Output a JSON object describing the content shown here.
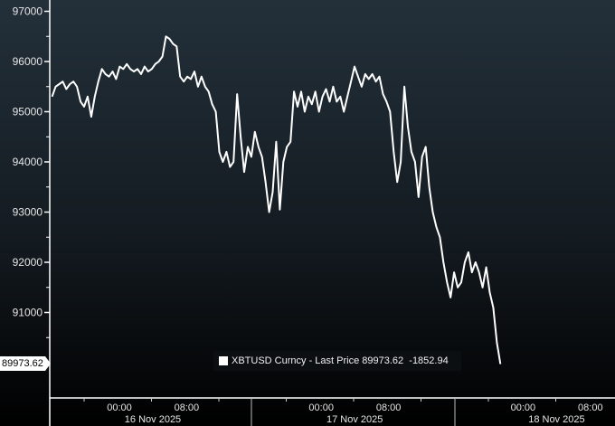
{
  "chart_data": {
    "type": "line",
    "title": "",
    "xlabel": "",
    "ylabel": "",
    "ylim": [
      89500,
      97200
    ],
    "xlim": [
      "2025-11-15 15:43",
      "2025-11-18 10:55"
    ],
    "yticks": [
      97000,
      96000,
      95000,
      94000,
      93000,
      92000,
      91000
    ],
    "xtick_labels": [
      {
        "time": "00:00",
        "date": "16 Nov 2025",
        "at": "2025-11-16 00:00"
      },
      {
        "time": "08:00",
        "date": "",
        "at": "2025-11-16 08:00"
      },
      {
        "time": "00:00",
        "date": "17 Nov 2025",
        "at": "2025-11-17 00:00"
      },
      {
        "time": "08:00",
        "date": "",
        "at": "2025-11-17 08:00"
      },
      {
        "time": "00:00",
        "date": "18 Nov 2025",
        "at": "2025-11-18 00:00"
      },
      {
        "time": "08:00",
        "date": "",
        "at": "2025-11-18 08:00"
      }
    ],
    "grid": false,
    "legend_placement": "bottom-center",
    "series": [
      {
        "name": "XBTUSD Curncy - Last Price",
        "color": "#ffffff",
        "x_start": "2025-11-15 16:00",
        "x_end": "2025-11-17 21:18",
        "values": [
          95300,
          95500,
          95550,
          95600,
          95450,
          95550,
          95600,
          95500,
          95200,
          95100,
          95300,
          94900,
          95300,
          95600,
          95850,
          95750,
          95700,
          95800,
          95650,
          95900,
          95850,
          95950,
          95850,
          95800,
          95850,
          95750,
          95900,
          95800,
          95850,
          95950,
          96000,
          96100,
          96500,
          96450,
          96350,
          96300,
          95700,
          95600,
          95700,
          95650,
          95800,
          95500,
          95700,
          95500,
          95400,
          95150,
          95000,
          94200,
          94000,
          94200,
          93900,
          94000,
          95350,
          94500,
          93800,
          94300,
          94100,
          94600,
          94300,
          94100,
          93600,
          93000,
          93400,
          94400,
          93050,
          94000,
          94300,
          94400,
          95400,
          95100,
          95400,
          95000,
          95300,
          95150,
          95400,
          95000,
          95300,
          95450,
          95200,
          95500,
          95200,
          95300,
          95000,
          95300,
          95600,
          95900,
          95700,
          95500,
          95750,
          95650,
          95750,
          95600,
          95700,
          95350,
          95200,
          95000,
          94200,
          93600,
          94000,
          95500,
          94700,
          94200,
          94000,
          93300,
          94100,
          94300,
          93500,
          93000,
          92700,
          92500,
          92000,
          91600,
          91300,
          91800,
          91500,
          91600,
          92000,
          92200,
          91800,
          92000,
          91800,
          91500,
          91900,
          91400,
          91100,
          90400,
          89973.62
        ]
      }
    ],
    "last_price_label": "89973.62",
    "legend": {
      "label": "XBTUSD Curncy - Last Price",
      "last": "89973.62",
      "change": "-1852.94"
    }
  }
}
